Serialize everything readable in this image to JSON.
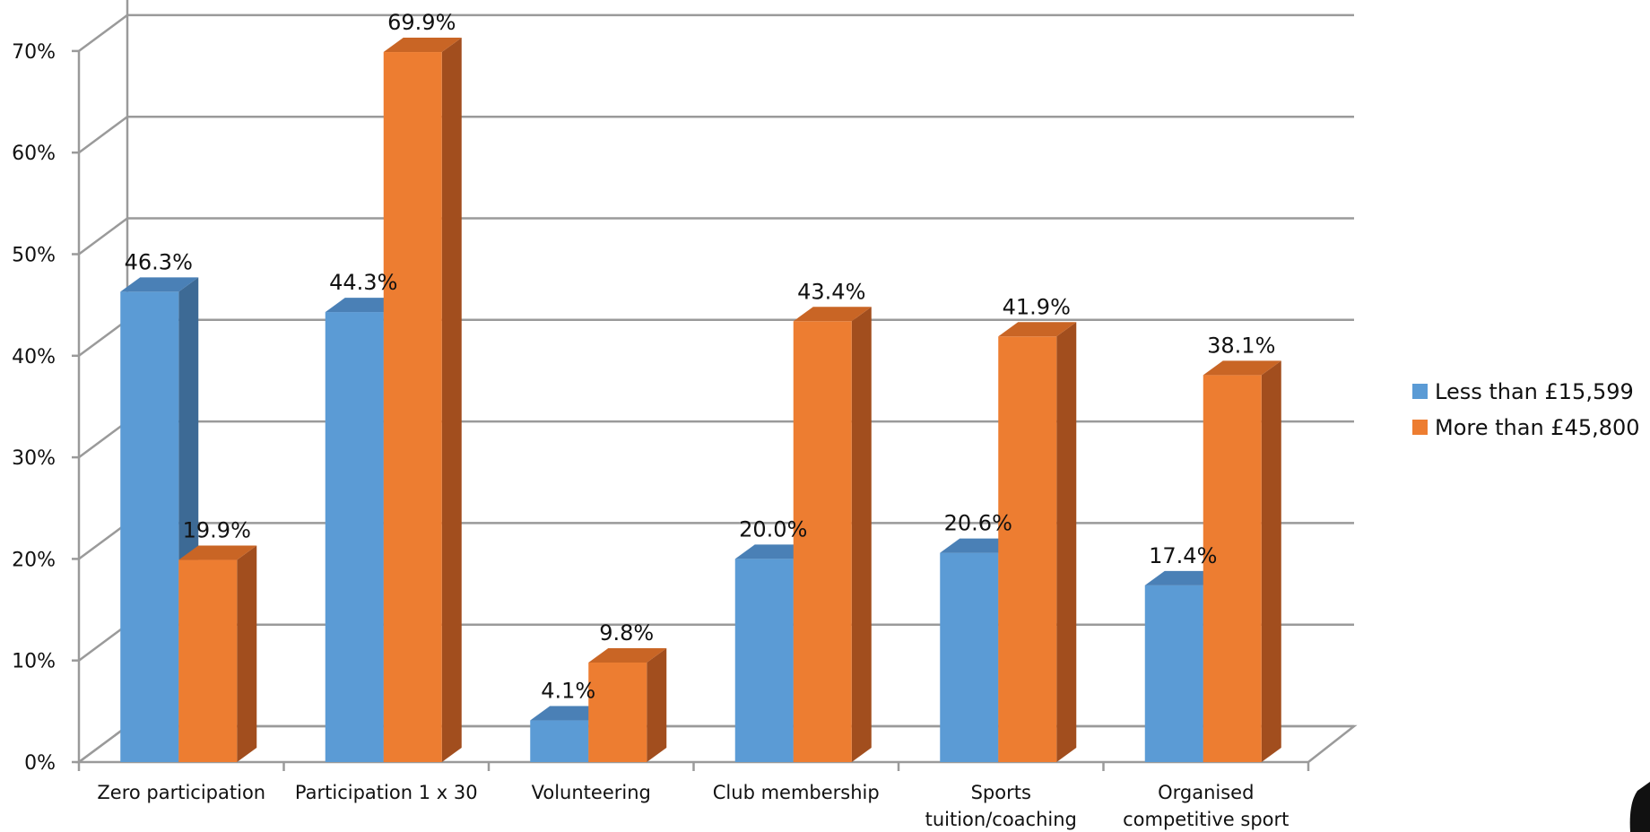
{
  "chart_data": {
    "type": "bar",
    "categories": [
      [
        "Zero participation"
      ],
      [
        "Participation 1 x 30"
      ],
      [
        "Volunteering"
      ],
      [
        "Club membership"
      ],
      [
        "Sports",
        "tuition/coaching"
      ],
      [
        "Organised",
        "competitive sport"
      ]
    ],
    "series": [
      {
        "name": "Less than £15,599",
        "color": "#5B9BD5",
        "side_color": "#3D6A95",
        "top_color": "#4A80B6",
        "values": [
          46.3,
          44.3,
          4.1,
          20.0,
          20.6,
          17.4
        ],
        "labels": [
          "46.3%",
          "44.3%",
          "4.1%",
          "20.0%",
          "20.6%",
          "17.4%"
        ]
      },
      {
        "name": "More than £45,800",
        "color": "#ED7D31",
        "side_color": "#A24E1E",
        "top_color": "#C96525",
        "values": [
          19.9,
          69.9,
          9.8,
          43.4,
          41.9,
          38.1
        ],
        "labels": [
          "19.9%",
          "69.9%",
          "9.8%",
          "43.4%",
          "41.9%",
          "38.1%"
        ]
      }
    ],
    "y_ticks": [
      {
        "value": 0,
        "label": "0%"
      },
      {
        "value": 10,
        "label": "10%"
      },
      {
        "value": 20,
        "label": "20%"
      },
      {
        "value": 30,
        "label": "30%"
      },
      {
        "value": 40,
        "label": "40%"
      },
      {
        "value": 50,
        "label": "50%"
      },
      {
        "value": 60,
        "label": "60%"
      },
      {
        "value": 70,
        "label": "70%"
      }
    ],
    "ylim": [
      0,
      70
    ],
    "grid": true,
    "legend_position": "right",
    "style": "3d-clustered-column",
    "title": "",
    "xlabel": "",
    "ylabel": ""
  }
}
